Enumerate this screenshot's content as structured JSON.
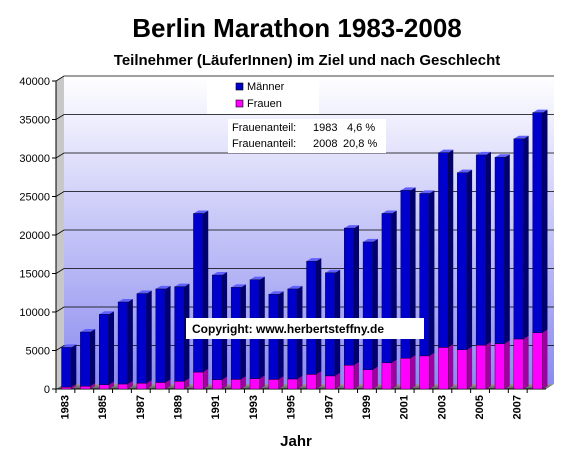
{
  "chart_data": {
    "type": "bar",
    "stacked": true,
    "title": "Berlin Marathon 1983-2008",
    "subtitle": "Teilnehmer (LäuferInnen) im Ziel und nach Geschlecht",
    "xlabel": "Jahr",
    "ylabel": "",
    "ylim": [
      0,
      40000
    ],
    "yticks": [
      "0",
      "5000",
      "10000",
      "15000",
      "20000",
      "25000",
      "30000",
      "35000",
      "40000"
    ],
    "x_tick_labels": [
      "1983",
      "1985",
      "1987",
      "1989",
      "1991",
      "1993",
      "1995",
      "1997",
      "1999",
      "2001",
      "2003",
      "2005",
      "2007"
    ],
    "grid": true,
    "legend_position": "top-center",
    "categories": [
      "1983",
      "1984",
      "1985",
      "1986",
      "1987",
      "1988",
      "1989",
      "1990",
      "1991",
      "1992",
      "1993",
      "1994",
      "1995",
      "1996",
      "1997",
      "1998",
      "1999",
      "2000",
      "2001",
      "2002",
      "2003",
      "2004",
      "2005",
      "2006",
      "2007",
      "2008"
    ],
    "series": [
      {
        "name": "Frauen",
        "color": "#ff00ff",
        "values": [
          250,
          350,
          550,
          650,
          750,
          850,
          1000,
          2200,
          1200,
          1250,
          1350,
          1250,
          1300,
          1900,
          1700,
          3100,
          2500,
          3400,
          4000,
          4300,
          5400,
          5100,
          5700,
          5900,
          6500,
          7300
        ]
      },
      {
        "name": "Männer",
        "color": "#0000cc",
        "values": [
          5150,
          7050,
          9150,
          10650,
          11650,
          12150,
          12300,
          20600,
          13600,
          11950,
          12850,
          11050,
          11700,
          14700,
          13400,
          17800,
          16600,
          19400,
          21800,
          21100,
          25300,
          23000,
          24700,
          24200,
          26000,
          28600
        ]
      }
    ],
    "annotations": [
      {
        "label": "Frauenanteil:",
        "year": "1983",
        "share": "4,6 %"
      },
      {
        "label": "Frauenanteil:",
        "year": "2008",
        "share": "20,8 %"
      }
    ],
    "copyright": "Copyright: www.herbertsteffny.de"
  }
}
